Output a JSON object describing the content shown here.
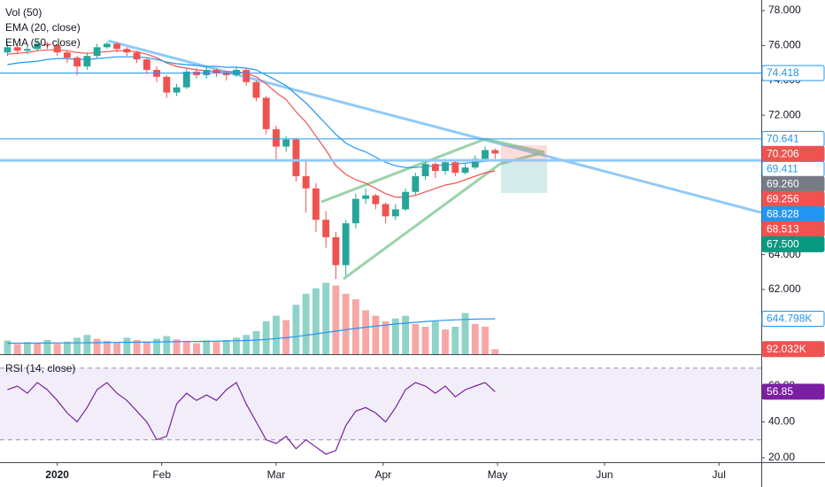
{
  "chart_data": [
    {
      "type": "candlestick",
      "x": [
        1,
        3,
        5,
        7,
        9,
        11,
        13,
        15,
        17,
        19,
        21,
        23,
        25,
        27,
        29,
        31,
        33,
        35,
        37,
        39,
        41,
        43,
        45,
        47,
        49,
        51,
        53,
        55,
        57,
        59,
        61,
        63,
        65,
        67,
        69,
        71,
        73,
        75,
        77,
        79,
        81,
        83,
        85,
        87,
        89,
        91,
        93,
        95,
        97,
        99
      ],
      "open": [
        75.6,
        75.9,
        75.7,
        75.8,
        76.1,
        76.0,
        75.6,
        75.3,
        74.8,
        75.4,
        75.9,
        76.1,
        75.8,
        75.6,
        75.2,
        74.6,
        74.2,
        73.3,
        73.6,
        74.5,
        74.3,
        74.6,
        74.4,
        74.3,
        74.6,
        73.9,
        73.0,
        71.2,
        70.2,
        70.6,
        68.5,
        67.8,
        66.0,
        65.0,
        63.4,
        65.8,
        67.2,
        67.4,
        66.9,
        66.2,
        66.6,
        67.6,
        68.5,
        69.2,
        68.8,
        69.3,
        68.7,
        69.0,
        69.5,
        70.0
      ],
      "high": [
        76.1,
        76.0,
        76.0,
        76.3,
        76.2,
        76.1,
        75.7,
        75.4,
        75.6,
        76.1,
        76.2,
        76.2,
        75.9,
        75.7,
        75.3,
        74.8,
        74.3,
        73.8,
        74.7,
        74.7,
        74.8,
        74.7,
        74.5,
        74.8,
        74.7,
        74.0,
        73.1,
        71.4,
        70.8,
        70.7,
        69.4,
        68.1,
        66.5,
        65.3,
        66.0,
        67.5,
        67.8,
        67.5,
        67.0,
        66.9,
        67.8,
        68.7,
        69.4,
        69.3,
        69.5,
        69.4,
        69.2,
        69.7,
        70.2,
        70.1
      ],
      "low": [
        75.4,
        75.5,
        75.5,
        75.7,
        75.8,
        75.4,
        75.0,
        74.3,
        74.6,
        75.3,
        75.8,
        75.6,
        75.4,
        75.0,
        74.4,
        73.9,
        73.0,
        73.1,
        73.5,
        74.1,
        74.1,
        74.2,
        74.0,
        74.2,
        73.7,
        72.8,
        70.9,
        69.4,
        69.9,
        68.2,
        66.4,
        65.3,
        64.4,
        62.6,
        62.8,
        65.5,
        66.9,
        66.6,
        65.8,
        66.0,
        66.5,
        67.4,
        68.3,
        68.4,
        68.6,
        68.5,
        68.6,
        68.9,
        69.4,
        69.5
      ],
      "close": [
        75.9,
        75.7,
        75.8,
        76.1,
        76.0,
        75.6,
        75.3,
        74.8,
        75.4,
        75.9,
        76.1,
        75.8,
        75.6,
        75.2,
        74.6,
        74.2,
        73.3,
        73.6,
        74.5,
        74.3,
        74.6,
        74.4,
        74.3,
        74.6,
        73.9,
        73.0,
        71.2,
        70.2,
        70.6,
        68.5,
        67.8,
        66.0,
        65.0,
        63.4,
        65.8,
        67.2,
        67.4,
        66.9,
        66.2,
        66.6,
        67.6,
        68.5,
        69.2,
        68.8,
        69.3,
        68.7,
        69.0,
        69.5,
        70.0,
        69.8
      ],
      "up_color": "#26a69a",
      "down_color": "#ef5350",
      "series": [
        {
          "name": "EMA (20, close)",
          "color": "#ef5350",
          "values": [
            75.5,
            75.55,
            75.6,
            75.7,
            75.75,
            75.75,
            75.7,
            75.6,
            75.55,
            75.6,
            75.65,
            75.7,
            75.7,
            75.65,
            75.5,
            75.3,
            75.0,
            74.8,
            74.7,
            74.6,
            74.55,
            74.5,
            74.5,
            74.5,
            74.4,
            74.2,
            73.8,
            73.3,
            72.9,
            72.2,
            71.6,
            70.8,
            70.0,
            69.1,
            68.6,
            68.3,
            68.1,
            67.8,
            67.5,
            67.3,
            67.3,
            67.4,
            67.6,
            67.8,
            68.0,
            68.1,
            68.3,
            68.5,
            68.7,
            68.8
          ]
        },
        {
          "name": "EMA (50, close)",
          "color": "#2196f3",
          "values": [
            74.9,
            75.0,
            75.05,
            75.1,
            75.2,
            75.25,
            75.25,
            75.2,
            75.2,
            75.25,
            75.3,
            75.35,
            75.35,
            75.35,
            75.3,
            75.2,
            75.05,
            74.95,
            74.9,
            74.85,
            74.8,
            74.8,
            74.75,
            74.75,
            74.7,
            74.6,
            74.3,
            74.0,
            73.7,
            73.2,
            72.7,
            72.1,
            71.5,
            70.9,
            70.4,
            70.1,
            69.9,
            69.6,
            69.3,
            69.1,
            69.0,
            69.0,
            69.05,
            69.1,
            69.15,
            69.2,
            69.25,
            69.3,
            69.35,
            69.4
          ]
        }
      ],
      "ylim": [
        58.29,
        78.61
      ],
      "yticks": [
        {
          "value": 62,
          "label": "62.000"
        },
        {
          "value": 64,
          "label": "64.000"
        },
        {
          "value": 72,
          "label": "72.000"
        },
        {
          "value": 74,
          "label": "74.000"
        },
        {
          "value": 76,
          "label": "76.000"
        },
        {
          "value": 78,
          "label": "78.000"
        }
      ],
      "xlim": [
        -0.5,
        152.5
      ],
      "xticks": [
        {
          "value": 11,
          "label": "2020"
        },
        {
          "value": 32,
          "label": "Feb"
        },
        {
          "value": 55,
          "label": "Mar"
        },
        {
          "value": 76.5,
          "label": "Apr"
        },
        {
          "value": 99.5,
          "label": "May"
        },
        {
          "value": 121,
          "label": "Jun"
        },
        {
          "value": 144,
          "label": "Jul"
        }
      ],
      "badges": [
        {
          "value": 74.418,
          "label": "74.418",
          "bg": "#ffffff",
          "fg": "#2196f3",
          "border": "#2196f3",
          "line": "thin"
        },
        {
          "value": 70.641,
          "label": "70.641",
          "bg": "#ffffff",
          "fg": "#2196f3",
          "border": "#2196f3",
          "line": "thin"
        },
        {
          "value": 70.206,
          "label": "70.206",
          "bg": "#ef5350",
          "fg": "#ffffff",
          "border": "#ef5350"
        },
        {
          "value": 69.411,
          "label": "69.411",
          "bg": "#ffffff",
          "fg": "#2196f3",
          "border": "#2196f3",
          "line": "thick"
        },
        {
          "value": 69.26,
          "label": "69.260",
          "bg": "#787b86",
          "fg": "#ffffff",
          "border": "#787b86"
        },
        {
          "value": 69.256,
          "label": "69.256",
          "bg": "#ef5350",
          "fg": "#ffffff",
          "border": "#ef5350"
        },
        {
          "value": 68.828,
          "label": "68.828",
          "bg": "#2196f3",
          "fg": "#ffffff",
          "border": "#2196f3"
        },
        {
          "value": 68.513,
          "label": "68.513",
          "bg": "#ef5350",
          "fg": "#ffffff",
          "border": "#ef5350"
        },
        {
          "value": 67.5,
          "label": "67.500",
          "bg": "#089981",
          "fg": "#ffffff",
          "border": "#089981"
        }
      ]
    },
    {
      "type": "bar",
      "title": "Vol (50)",
      "x": [
        1,
        3,
        5,
        7,
        9,
        11,
        13,
        15,
        17,
        19,
        21,
        23,
        25,
        27,
        29,
        31,
        33,
        35,
        37,
        39,
        41,
        43,
        45,
        47,
        49,
        51,
        53,
        55,
        57,
        59,
        61,
        63,
        65,
        67,
        69,
        71,
        73,
        75,
        77,
        79,
        81,
        83,
        85,
        87,
        89,
        91,
        93,
        95,
        97,
        99
      ],
      "values": [
        250,
        180,
        220,
        200,
        260,
        190,
        230,
        300,
        350,
        280,
        240,
        220,
        300,
        260,
        230,
        280,
        330,
        270,
        240,
        200,
        250,
        220,
        260,
        300,
        350,
        420,
        600,
        700,
        620,
        900,
        1100,
        1200,
        1300,
        1250,
        1100,
        1000,
        800,
        700,
        600,
        650,
        700,
        550,
        500,
        600,
        450,
        500,
        750,
        550,
        500,
        92.032
      ],
      "ma_values": [
        200,
        200,
        201,
        202,
        203,
        204,
        205,
        206,
        208,
        210,
        212,
        214,
        216,
        218,
        220,
        222,
        225,
        228,
        230,
        232,
        234,
        236,
        240,
        245,
        250,
        258,
        270,
        285,
        300,
        320,
        345,
        370,
        395,
        420,
        445,
        470,
        490,
        510,
        530,
        550,
        565,
        580,
        595,
        608,
        618,
        626,
        632,
        638,
        642,
        644.798
      ],
      "ma_color": "#2196f3",
      "up_color": "#8fd3c8",
      "down_color": "#f7a8a6",
      "ylim": [
        0,
        6450
      ],
      "badges": [
        {
          "value": 644.798,
          "label": "644.798K",
          "bg": "#ffffff",
          "fg": "#2196f3",
          "border": "#2196f3"
        },
        {
          "value": 92.032,
          "label": "92.032K",
          "bg": "#ef5350",
          "fg": "#ffffff",
          "border": "#ef5350"
        }
      ]
    },
    {
      "type": "line",
      "title": "RSI (14, close)",
      "x": [
        1,
        3,
        5,
        7,
        9,
        11,
        13,
        15,
        17,
        19,
        21,
        23,
        25,
        27,
        29,
        31,
        33,
        35,
        37,
        39,
        41,
        43,
        45,
        47,
        49,
        51,
        53,
        55,
        57,
        59,
        61,
        63,
        65,
        67,
        69,
        71,
        73,
        75,
        77,
        79,
        81,
        83,
        85,
        87,
        89,
        91,
        93,
        95,
        97,
        99
      ],
      "values": [
        58,
        60,
        56,
        62,
        58,
        52,
        45,
        40,
        48,
        58,
        62,
        56,
        52,
        46,
        40,
        30,
        32,
        50,
        56,
        52,
        55,
        52,
        58,
        62,
        50,
        40,
        30,
        28,
        32,
        25,
        30,
        26,
        22,
        24,
        38,
        46,
        48,
        45,
        40,
        48,
        58,
        62,
        60,
        56,
        60,
        54,
        58,
        60,
        62,
        56.85
      ],
      "color": "#7b1fa2",
      "band": [
        30,
        70
      ],
      "ylim": [
        17.5,
        77.8
      ],
      "yticks": [
        {
          "value": 60,
          "label": "60.00"
        },
        {
          "value": 40,
          "label": "40.00"
        },
        {
          "value": 20,
          "label": "20.00"
        }
      ],
      "badges": [
        {
          "value": 56.85,
          "label": "56.85",
          "bg": "#7b1fa2",
          "fg": "#ffffff",
          "border": "#7b1fa2"
        }
      ]
    }
  ]
}
